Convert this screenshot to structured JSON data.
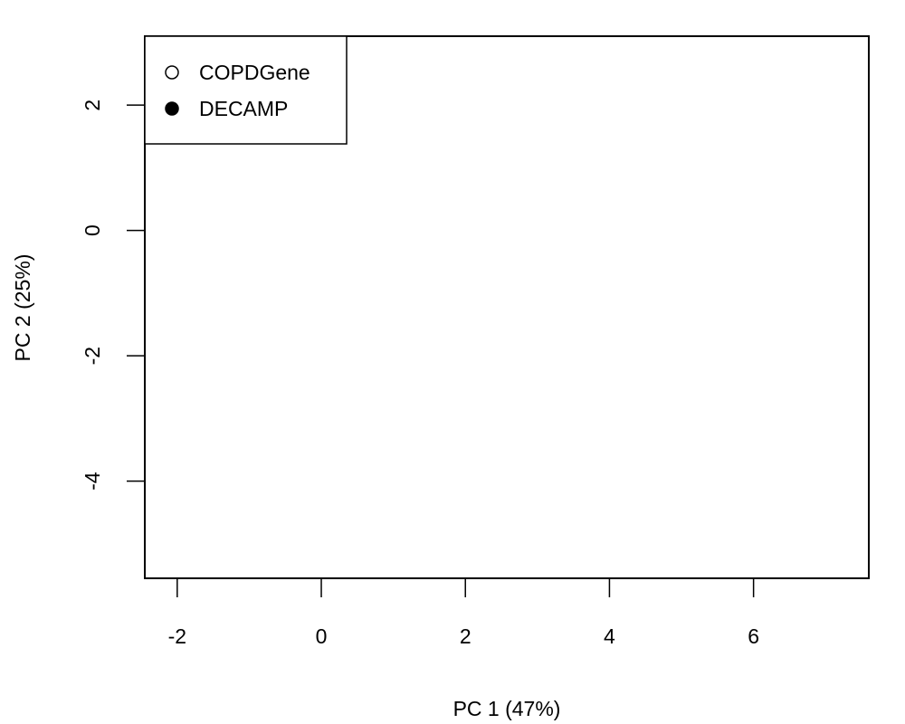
{
  "chart_data": {
    "type": "scatter",
    "title": "",
    "xlabel": "PC 1 (47%)",
    "ylabel": "PC 2 (25%)",
    "xlim": [
      -2.45,
      7.6
    ],
    "ylim": [
      -5.55,
      3.1
    ],
    "xticks": [
      -2,
      0,
      2,
      4,
      6
    ],
    "xtick_labels": [
      "-2",
      "0",
      "2",
      "4",
      "6"
    ],
    "yticks": [
      -4,
      -2,
      0,
      2
    ],
    "ytick_labels": [
      "-4",
      "-2",
      "0",
      "2"
    ],
    "grid": false,
    "legend": {
      "position": "top-left",
      "entries": [
        {
          "label": "COPDGene",
          "marker": "open-circle"
        },
        {
          "label": "DECAMP",
          "marker": "filled-circle"
        }
      ]
    },
    "series": [
      {
        "name": "COPDGene",
        "marker": "open-circle",
        "color": "#000000",
        "points": []
      },
      {
        "name": "DECAMP",
        "marker": "filled-circle",
        "color": "#000000",
        "points": []
      }
    ]
  }
}
